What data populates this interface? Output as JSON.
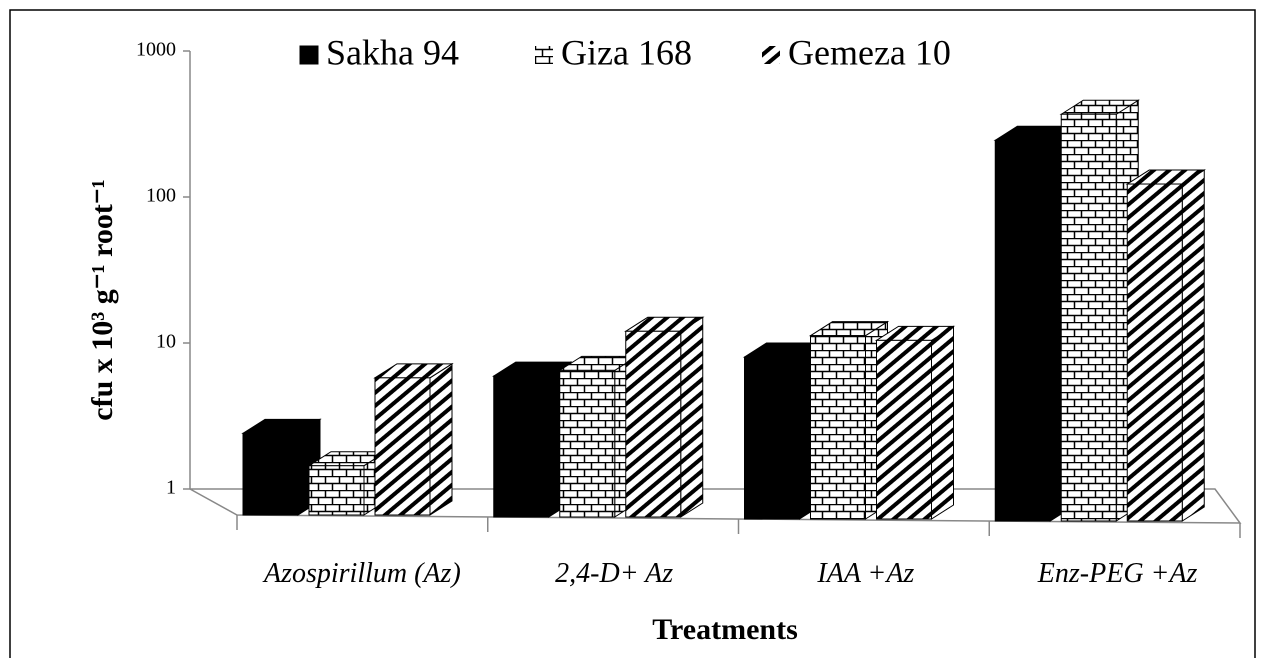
{
  "chart_data": {
    "type": "bar3d",
    "categories": [
      "Azospirillum (Az)",
      "2,4-D+ Az",
      "IAA +Az",
      "Enz-PEG +Az"
    ],
    "series": [
      {
        "name": "Sakha 94",
        "color": "#000000",
        "pattern": "solid",
        "values": [
          3,
          7.4,
          10,
          305
        ]
      },
      {
        "name": "Giza 168",
        "color": "#000000",
        "pattern": "brick",
        "values": [
          1.8,
          8.1,
          14,
          460
        ]
      },
      {
        "name": "Gemeza 10",
        "color": "#000000",
        "pattern": "diagonal",
        "values": [
          7.2,
          15,
          13,
          153
        ]
      }
    ],
    "ylabel": "cfu x 10³ g⁻¹ root⁻¹",
    "xlabel": "Treatments",
    "ylim": [
      1,
      1000
    ],
    "yticks": [
      1,
      10,
      100,
      1000
    ],
    "log_y": true,
    "legend": "top"
  }
}
